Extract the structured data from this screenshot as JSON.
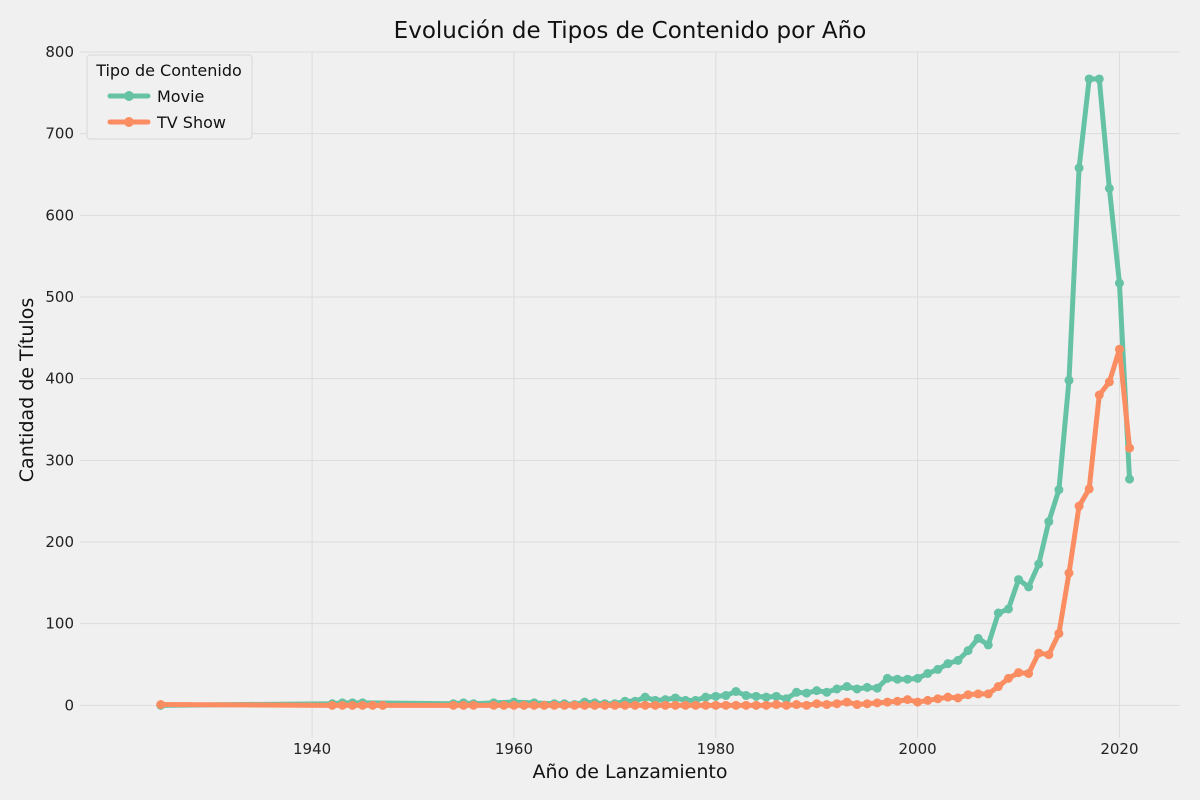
{
  "chart_data": {
    "type": "line",
    "title": "Evolución de Tipos de Contenido por Año",
    "xlabel": "Año de Lanzamiento",
    "ylabel": "Cantidad de Títulos",
    "xlim": [
      1917,
      2026
    ],
    "ylim": [
      -40,
      800
    ],
    "xticks": [
      1940,
      1960,
      1980,
      2000,
      2020
    ],
    "yticks": [
      0,
      100,
      200,
      300,
      400,
      500,
      600,
      700,
      800
    ],
    "grid": true,
    "legend": {
      "title": "Tipo de Contenido",
      "position": "top-left"
    },
    "series": [
      {
        "name": "Movie",
        "color": "#66c2a5",
        "x": [
          1925,
          1942,
          1943,
          1944,
          1945,
          1954,
          1955,
          1956,
          1958,
          1960,
          1962,
          1964,
          1965,
          1966,
          1967,
          1968,
          1969,
          1970,
          1971,
          1972,
          1973,
          1974,
          1975,
          1976,
          1977,
          1978,
          1979,
          1980,
          1981,
          1982,
          1983,
          1984,
          1985,
          1986,
          1987,
          1988,
          1989,
          1990,
          1991,
          1992,
          1993,
          1994,
          1995,
          1996,
          1997,
          1998,
          1999,
          2000,
          2001,
          2002,
          2003,
          2004,
          2005,
          2006,
          2007,
          2008,
          2009,
          2010,
          2011,
          2012,
          2013,
          2014,
          2015,
          2016,
          2017,
          2018,
          2019,
          2020,
          2021
        ],
        "values": [
          0,
          2,
          3,
          3,
          3,
          2,
          3,
          2,
          3,
          4,
          3,
          2,
          2,
          1,
          4,
          3,
          2,
          2,
          5,
          5,
          10,
          6,
          7,
          9,
          6,
          6,
          10,
          11,
          12,
          17,
          12,
          11,
          10,
          11,
          8,
          16,
          15,
          18,
          16,
          20,
          23,
          20,
          22,
          21,
          33,
          32,
          32,
          33,
          39,
          44,
          51,
          55,
          67,
          82,
          74,
          113,
          118,
          154,
          145,
          173,
          225,
          264,
          398,
          658,
          767,
          767,
          633,
          517,
          277
        ]
      },
      {
        "name": "TV Show",
        "color": "#fc8d62",
        "x": [
          1925,
          1942,
          1943,
          1944,
          1945,
          1946,
          1947,
          1954,
          1955,
          1956,
          1958,
          1959,
          1960,
          1961,
          1962,
          1963,
          1964,
          1965,
          1966,
          1967,
          1968,
          1969,
          1970,
          1971,
          1972,
          1973,
          1974,
          1975,
          1976,
          1977,
          1978,
          1979,
          1980,
          1981,
          1982,
          1983,
          1984,
          1985,
          1986,
          1987,
          1988,
          1989,
          1990,
          1991,
          1992,
          1993,
          1994,
          1995,
          1996,
          1997,
          1998,
          1999,
          2000,
          2001,
          2002,
          2003,
          2004,
          2005,
          2006,
          2007,
          2008,
          2009,
          2010,
          2011,
          2012,
          2013,
          2014,
          2015,
          2016,
          2017,
          2018,
          2019,
          2020,
          2021
        ],
        "values": [
          1,
          0,
          0,
          0,
          0,
          0,
          0,
          0,
          0,
          0,
          0,
          0,
          0,
          0,
          0,
          0,
          0,
          0,
          0,
          0,
          0,
          0,
          0,
          0,
          0,
          0,
          0,
          0,
          0,
          0,
          0,
          0,
          0,
          0,
          0,
          0,
          0,
          0,
          1,
          0,
          1,
          0,
          2,
          1,
          2,
          4,
          1,
          2,
          3,
          4,
          5,
          7,
          4,
          6,
          8,
          10,
          9,
          13,
          14,
          14,
          23,
          33,
          40,
          39,
          64,
          62,
          88,
          162,
          244,
          265,
          380,
          396,
          436,
          315
        ]
      }
    ]
  }
}
